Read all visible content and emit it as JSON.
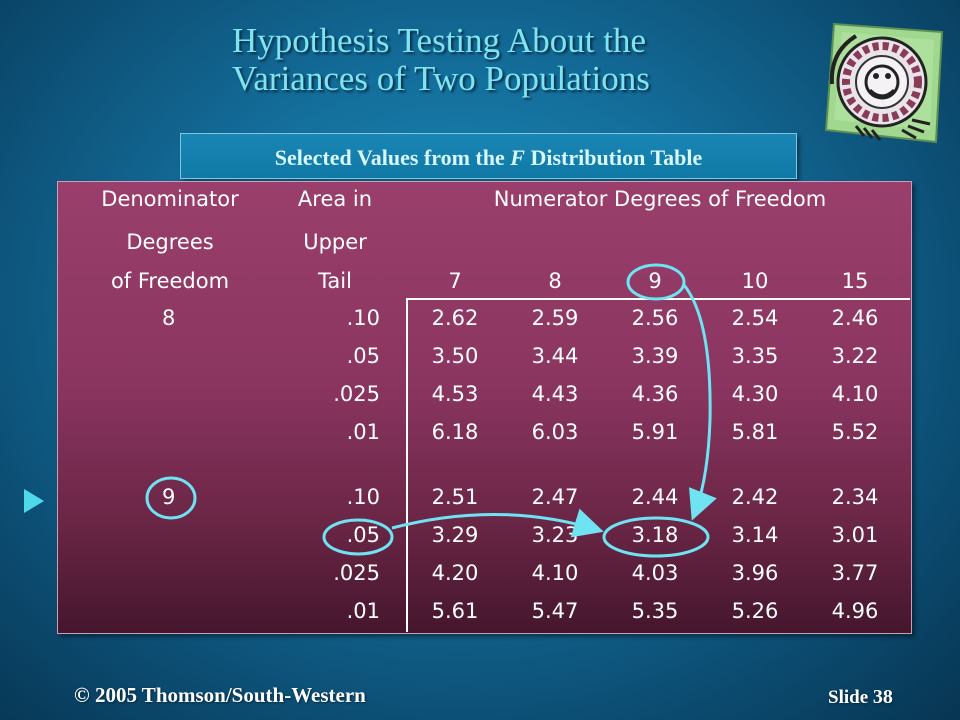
{
  "title": {
    "line1": "Hypothesis Testing About the",
    "line2": "Variances of Two Populations"
  },
  "subtitle": {
    "before": "Selected Values from the ",
    "italic": "F",
    "after": "  Distribution Table"
  },
  "table": {
    "headers": {
      "col1": [
        "Denominator",
        "Degrees",
        "of Freedom"
      ],
      "col2": [
        "Area in",
        "Upper",
        "Tail"
      ],
      "numerator_title": "Numerator Degrees of Freedom",
      "numerator_df": [
        "7",
        "8",
        "9",
        "10",
        "15"
      ]
    },
    "groups": [
      {
        "denominator_df": "8",
        "rows": [
          {
            "area": ".10",
            "values": [
              "2.62",
              "2.59",
              "2.56",
              "2.54",
              "2.46"
            ]
          },
          {
            "area": ".05",
            "values": [
              "3.50",
              "3.44",
              "3.39",
              "3.35",
              "3.22"
            ]
          },
          {
            "area": ".025",
            "values": [
              "4.53",
              "4.43",
              "4.36",
              "4.30",
              "4.10"
            ]
          },
          {
            "area": ".01",
            "values": [
              "6.18",
              "6.03",
              "5.91",
              "5.81",
              "5.52"
            ]
          }
        ]
      },
      {
        "denominator_df": "9",
        "rows": [
          {
            "area": ".10",
            "values": [
              "2.51",
              "2.47",
              "2.44",
              "2.42",
              "2.34"
            ]
          },
          {
            "area": ".05",
            "values": [
              "3.29",
              "3.23",
              "3.18",
              "3.14",
              "3.01"
            ]
          },
          {
            "area": ".025",
            "values": [
              "4.20",
              "4.10",
              "4.03",
              "3.96",
              "3.77"
            ]
          },
          {
            "area": ".01",
            "values": [
              "5.61",
              "5.47",
              "5.35",
              "5.26",
              "4.96"
            ]
          }
        ]
      }
    ]
  },
  "footer": {
    "copyright": "© 2005  Thomson/South-Western",
    "slide_label": "Slide",
    "slide_number": "38"
  },
  "colors": {
    "title": "#7ee5f0",
    "table_bg": "#8a3560",
    "highlight": "#6fe3f2",
    "bullet": "#4fd8ec"
  },
  "icons": {
    "bullet": "right-triangle-icon",
    "clipart": "gauge-clipart-icon"
  }
}
